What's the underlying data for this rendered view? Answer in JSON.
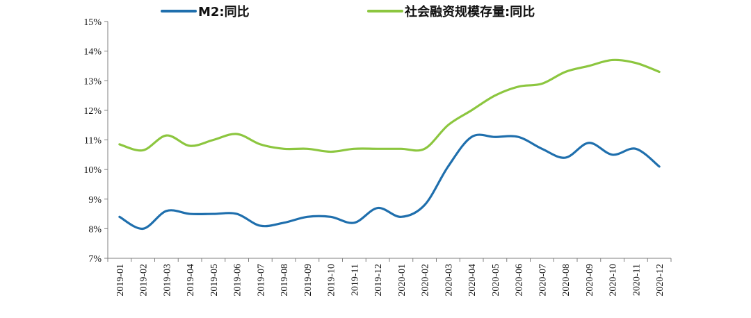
{
  "chart_data": {
    "type": "line",
    "title": "",
    "xlabel": "",
    "ylabel": "",
    "ylim": [
      7,
      15
    ],
    "y_ticks": [
      7,
      8,
      9,
      10,
      11,
      12,
      13,
      14,
      15
    ],
    "y_tick_labels": [
      "7%",
      "8%",
      "9%",
      "10%",
      "11%",
      "12%",
      "13%",
      "14%",
      "15%"
    ],
    "grid": false,
    "legend_position": "top",
    "categories": [
      "2019-01",
      "2019-02",
      "2019-03",
      "2019-04",
      "2019-05",
      "2019-06",
      "2019-07",
      "2019-08",
      "2019-09",
      "2019-10",
      "2019-11",
      "2019-12",
      "2020-01",
      "2020-02",
      "2020-03",
      "2020-04",
      "2020-05",
      "2020-06",
      "2020-07",
      "2020-08",
      "2020-09",
      "2020-10",
      "2020-11",
      "2020-12"
    ],
    "series": [
      {
        "name": "M2:同比",
        "color": "#1f6fad",
        "values": [
          8.4,
          8.0,
          8.6,
          8.5,
          8.5,
          8.5,
          8.1,
          8.2,
          8.4,
          8.4,
          8.2,
          8.7,
          8.4,
          8.8,
          10.1,
          11.1,
          11.1,
          11.1,
          10.7,
          10.4,
          10.9,
          10.5,
          10.7,
          10.1
        ]
      },
      {
        "name": "社会融资规模存量:同比",
        "color": "#8cc63f",
        "values": [
          10.85,
          10.65,
          11.15,
          10.8,
          11.0,
          11.2,
          10.85,
          10.7,
          10.7,
          10.6,
          10.7,
          10.7,
          10.7,
          10.7,
          11.5,
          12.0,
          12.5,
          12.8,
          12.9,
          13.3,
          13.5,
          13.7,
          13.6,
          13.3
        ]
      }
    ]
  }
}
